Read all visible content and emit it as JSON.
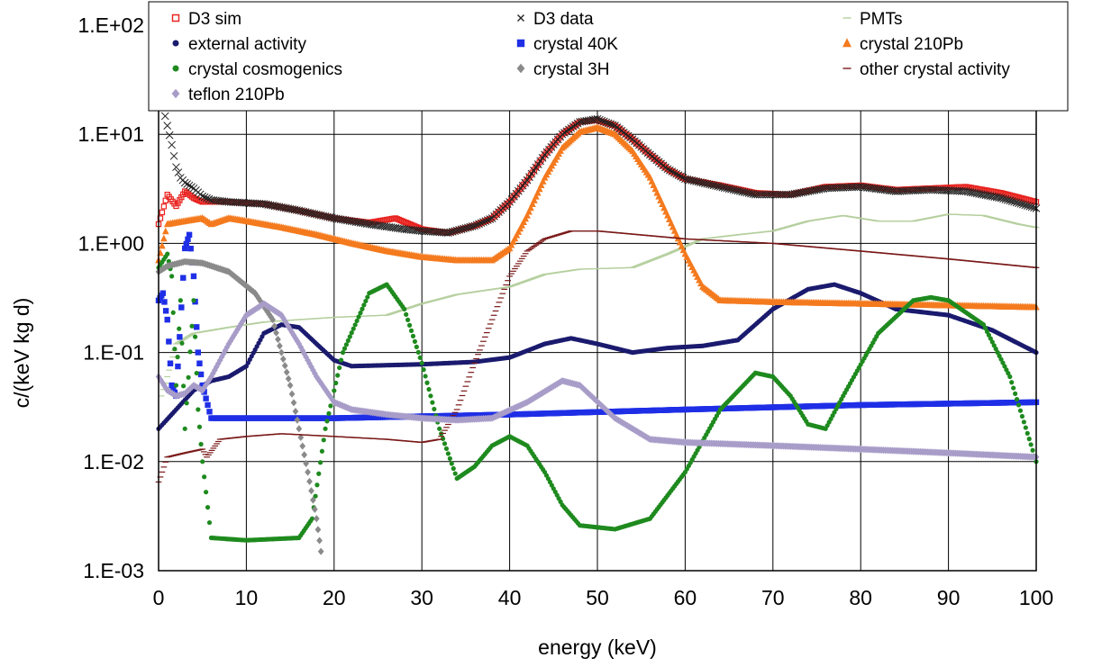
{
  "chart_data": {
    "type": "scatter",
    "title": "",
    "xlabel": "energy (keV)",
    "ylabel": "c/(keV kg d)",
    "xlim": [
      0,
      100
    ],
    "ylim": [
      0.001,
      100
    ],
    "yscale": "log",
    "grid": true,
    "legend_position": "top",
    "x_ticks": [
      "0",
      "10",
      "20",
      "30",
      "40",
      "50",
      "60",
      "70",
      "80",
      "90",
      "100"
    ],
    "y_ticks": [
      "1.E-03",
      "1.E-02",
      "1.E-01",
      "1.E+00",
      "1.E+01",
      "1.E+02"
    ],
    "series": [
      {
        "name": "D3 sim",
        "color": "#e8231f",
        "marker": "square-open",
        "points": [
          [
            0,
            1.5
          ],
          [
            1,
            2.8
          ],
          [
            2,
            2.2
          ],
          [
            3,
            3.0
          ],
          [
            4,
            2.6
          ],
          [
            5,
            2.4
          ],
          [
            8,
            2.4
          ],
          [
            12,
            2.3
          ],
          [
            16,
            2.0
          ],
          [
            20,
            1.7
          ],
          [
            24,
            1.55
          ],
          [
            27,
            1.7
          ],
          [
            30,
            1.35
          ],
          [
            33,
            1.25
          ],
          [
            36,
            1.45
          ],
          [
            38,
            1.7
          ],
          [
            40,
            2.4
          ],
          [
            42,
            3.8
          ],
          [
            44,
            6.5
          ],
          [
            46,
            10.0
          ],
          [
            48,
            13.0
          ],
          [
            50,
            13.5
          ],
          [
            52,
            12.0
          ],
          [
            54,
            9.0
          ],
          [
            56,
            6.5
          ],
          [
            58,
            4.8
          ],
          [
            60,
            3.9
          ],
          [
            64,
            3.4
          ],
          [
            68,
            2.9
          ],
          [
            72,
            2.8
          ],
          [
            76,
            3.3
          ],
          [
            80,
            3.4
          ],
          [
            84,
            3.1
          ],
          [
            88,
            3.2
          ],
          [
            92,
            3.3
          ],
          [
            96,
            2.9
          ],
          [
            100,
            2.4
          ]
        ]
      },
      {
        "name": "D3 data",
        "color": "#222222",
        "marker": "x",
        "points": [
          [
            0.5,
            18
          ],
          [
            1,
            12
          ],
          [
            1.5,
            8
          ],
          [
            2,
            5
          ],
          [
            2.5,
            4
          ],
          [
            3,
            3.6
          ],
          [
            4,
            3.2
          ],
          [
            5,
            2.7
          ],
          [
            6,
            2.5
          ],
          [
            8,
            2.4
          ],
          [
            12,
            2.3
          ],
          [
            16,
            2.0
          ],
          [
            20,
            1.7
          ],
          [
            24,
            1.5
          ],
          [
            28,
            1.35
          ],
          [
            30,
            1.3
          ],
          [
            33,
            1.25
          ],
          [
            36,
            1.45
          ],
          [
            38,
            1.7
          ],
          [
            40,
            2.4
          ],
          [
            42,
            3.8
          ],
          [
            44,
            6.5
          ],
          [
            46,
            10.0
          ],
          [
            48,
            13.0
          ],
          [
            50,
            13.8
          ],
          [
            52,
            12.0
          ],
          [
            54,
            9.0
          ],
          [
            56,
            6.5
          ],
          [
            58,
            4.8
          ],
          [
            60,
            3.9
          ],
          [
            64,
            3.3
          ],
          [
            68,
            2.8
          ],
          [
            72,
            2.8
          ],
          [
            76,
            3.2
          ],
          [
            80,
            3.3
          ],
          [
            84,
            3.0
          ],
          [
            88,
            3.1
          ],
          [
            92,
            3.0
          ],
          [
            96,
            2.6
          ],
          [
            100,
            2.1
          ]
        ]
      },
      {
        "name": "PMTs",
        "color": "#b5cf9e",
        "marker": "dash",
        "points": [
          [
            0.3,
            0.04
          ],
          [
            1,
            0.06
          ],
          [
            2,
            0.12
          ],
          [
            4,
            0.15
          ],
          [
            8,
            0.17
          ],
          [
            12,
            0.19
          ],
          [
            16,
            0.2
          ],
          [
            20,
            0.21
          ],
          [
            26,
            0.22
          ],
          [
            30,
            0.28
          ],
          [
            34,
            0.34
          ],
          [
            40,
            0.4
          ],
          [
            44,
            0.52
          ],
          [
            48,
            0.58
          ],
          [
            54,
            0.6
          ],
          [
            58,
            0.8
          ],
          [
            62,
            1.1
          ],
          [
            66,
            1.2
          ],
          [
            70,
            1.3
          ],
          [
            74,
            1.6
          ],
          [
            78,
            1.8
          ],
          [
            82,
            1.6
          ],
          [
            86,
            1.6
          ],
          [
            90,
            1.85
          ],
          [
            94,
            1.8
          ],
          [
            98,
            1.5
          ],
          [
            100,
            1.4
          ]
        ]
      },
      {
        "name": "external activity",
        "color": "#1a1a6e",
        "marker": "circle",
        "points": [
          [
            0,
            0.02
          ],
          [
            2,
            0.03
          ],
          [
            4,
            0.045
          ],
          [
            6,
            0.055
          ],
          [
            8,
            0.06
          ],
          [
            10,
            0.075
          ],
          [
            12,
            0.15
          ],
          [
            14,
            0.18
          ],
          [
            16,
            0.17
          ],
          [
            18,
            0.12
          ],
          [
            20,
            0.085
          ],
          [
            22,
            0.075
          ],
          [
            30,
            0.078
          ],
          [
            36,
            0.082
          ],
          [
            40,
            0.09
          ],
          [
            44,
            0.12
          ],
          [
            47,
            0.135
          ],
          [
            50,
            0.12
          ],
          [
            54,
            0.1
          ],
          [
            58,
            0.11
          ],
          [
            62,
            0.115
          ],
          [
            66,
            0.13
          ],
          [
            70,
            0.25
          ],
          [
            74,
            0.38
          ],
          [
            77,
            0.42
          ],
          [
            80,
            0.35
          ],
          [
            84,
            0.25
          ],
          [
            90,
            0.22
          ],
          [
            95,
            0.16
          ],
          [
            100,
            0.1
          ]
        ]
      },
      {
        "name": "crystal 40K",
        "color": "#1f2fe6",
        "marker": "square",
        "points": [
          [
            0,
            0.3
          ],
          [
            0.5,
            0.35
          ],
          [
            1,
            0.2
          ],
          [
            1.5,
            0.05
          ],
          [
            2,
            0.04
          ],
          [
            3,
            0.9
          ],
          [
            3.5,
            1.2
          ],
          [
            4,
            0.5
          ],
          [
            4.5,
            0.1
          ],
          [
            5,
            0.05
          ],
          [
            6,
            0.025
          ],
          [
            20,
            0.025
          ],
          [
            40,
            0.027
          ],
          [
            60,
            0.03
          ],
          [
            80,
            0.033
          ],
          [
            100,
            0.035
          ]
        ]
      },
      {
        "name": "crystal 210Pb",
        "color": "#f47a1e",
        "marker": "triangle",
        "points": [
          [
            0,
            0.7
          ],
          [
            1,
            1.5
          ],
          [
            3,
            1.6
          ],
          [
            5,
            1.7
          ],
          [
            6,
            1.5
          ],
          [
            8,
            1.7
          ],
          [
            10,
            1.6
          ],
          [
            14,
            1.4
          ],
          [
            18,
            1.2
          ],
          [
            22,
            1.0
          ],
          [
            26,
            0.85
          ],
          [
            30,
            0.75
          ],
          [
            34,
            0.7
          ],
          [
            38,
            0.7
          ],
          [
            40,
            0.9
          ],
          [
            42,
            1.8
          ],
          [
            44,
            4.0
          ],
          [
            46,
            7.5
          ],
          [
            48,
            10.5
          ],
          [
            50,
            11.5
          ],
          [
            52,
            10.0
          ],
          [
            54,
            7.0
          ],
          [
            56,
            4.0
          ],
          [
            58,
            1.8
          ],
          [
            60,
            0.8
          ],
          [
            62,
            0.4
          ],
          [
            64,
            0.3
          ],
          [
            70,
            0.29
          ],
          [
            80,
            0.28
          ],
          [
            90,
            0.27
          ],
          [
            100,
            0.26
          ]
        ]
      },
      {
        "name": "crystal cosmogenics",
        "color": "#1e8a1e",
        "marker": "circle",
        "points": [
          [
            0,
            0.6
          ],
          [
            1,
            0.8
          ],
          [
            1.5,
            0.5
          ],
          [
            2,
            0.05
          ],
          [
            2.5,
            0.3
          ],
          [
            3,
            0.02
          ],
          [
            4,
            0.3
          ],
          [
            4.5,
            0.03
          ],
          [
            5,
            0.01
          ],
          [
            6,
            0.002
          ],
          [
            10,
            0.0019
          ],
          [
            16,
            0.002
          ],
          [
            17.5,
            0.003
          ],
          [
            19,
            0.02
          ],
          [
            21,
            0.1
          ],
          [
            24,
            0.35
          ],
          [
            26,
            0.42
          ],
          [
            28,
            0.25
          ],
          [
            30,
            0.08
          ],
          [
            32,
            0.02
          ],
          [
            34,
            0.007
          ],
          [
            36,
            0.009
          ],
          [
            38,
            0.014
          ],
          [
            40,
            0.017
          ],
          [
            42,
            0.014
          ],
          [
            44,
            0.008
          ],
          [
            46,
            0.004
          ],
          [
            48,
            0.0026
          ],
          [
            52,
            0.0024
          ],
          [
            56,
            0.003
          ],
          [
            60,
            0.008
          ],
          [
            64,
            0.03
          ],
          [
            68,
            0.065
          ],
          [
            70,
            0.06
          ],
          [
            72,
            0.04
          ],
          [
            74,
            0.022
          ],
          [
            76,
            0.02
          ],
          [
            78,
            0.04
          ],
          [
            82,
            0.15
          ],
          [
            86,
            0.3
          ],
          [
            88,
            0.32
          ],
          [
            90,
            0.3
          ],
          [
            94,
            0.18
          ],
          [
            97,
            0.06
          ],
          [
            100,
            0.01
          ]
        ]
      },
      {
        "name": "crystal 3H",
        "color": "#8a8a8a",
        "marker": "diamond",
        "points": [
          [
            0,
            0.55
          ],
          [
            1,
            0.62
          ],
          [
            3,
            0.68
          ],
          [
            5,
            0.66
          ],
          [
            8,
            0.55
          ],
          [
            11,
            0.35
          ],
          [
            13,
            0.2
          ],
          [
            14,
            0.1
          ],
          [
            15,
            0.05
          ],
          [
            16,
            0.02
          ],
          [
            17,
            0.008
          ],
          [
            18,
            0.003
          ],
          [
            18.5,
            0.0015
          ]
        ]
      },
      {
        "name": "other crystal activity",
        "color": "#7a1818",
        "marker": "dash",
        "points": [
          [
            0,
            0.0065
          ],
          [
            1,
            0.011
          ],
          [
            3,
            0.012
          ],
          [
            5,
            0.013
          ],
          [
            5.5,
            0.011
          ],
          [
            7,
            0.016
          ],
          [
            10,
            0.017
          ],
          [
            14,
            0.018
          ],
          [
            20,
            0.017
          ],
          [
            26,
            0.016
          ],
          [
            30,
            0.015
          ],
          [
            32,
            0.016
          ],
          [
            34,
            0.03
          ],
          [
            36,
            0.08
          ],
          [
            38,
            0.2
          ],
          [
            40,
            0.5
          ],
          [
            42,
            0.85
          ],
          [
            44,
            1.1
          ],
          [
            47,
            1.3
          ],
          [
            50,
            1.3
          ],
          [
            60,
            1.1
          ],
          [
            70,
            1.0
          ],
          [
            80,
            0.85
          ],
          [
            90,
            0.72
          ],
          [
            100,
            0.6
          ]
        ]
      },
      {
        "name": "teflon 210Pb",
        "color": "#a89cc8",
        "marker": "diamond",
        "points": [
          [
            0,
            0.06
          ],
          [
            1,
            0.045
          ],
          [
            2,
            0.04
          ],
          [
            3,
            0.042
          ],
          [
            4,
            0.05
          ],
          [
            5,
            0.045
          ],
          [
            6,
            0.06
          ],
          [
            8,
            0.12
          ],
          [
            10,
            0.22
          ],
          [
            12,
            0.28
          ],
          [
            14,
            0.22
          ],
          [
            16,
            0.12
          ],
          [
            18,
            0.06
          ],
          [
            20,
            0.035
          ],
          [
            22,
            0.03
          ],
          [
            26,
            0.027
          ],
          [
            30,
            0.025
          ],
          [
            34,
            0.024
          ],
          [
            38,
            0.025
          ],
          [
            42,
            0.035
          ],
          [
            46,
            0.055
          ],
          [
            48,
            0.05
          ],
          [
            52,
            0.025
          ],
          [
            56,
            0.016
          ],
          [
            60,
            0.015
          ],
          [
            70,
            0.014
          ],
          [
            80,
            0.013
          ],
          [
            90,
            0.012
          ],
          [
            100,
            0.011
          ]
        ]
      }
    ]
  }
}
